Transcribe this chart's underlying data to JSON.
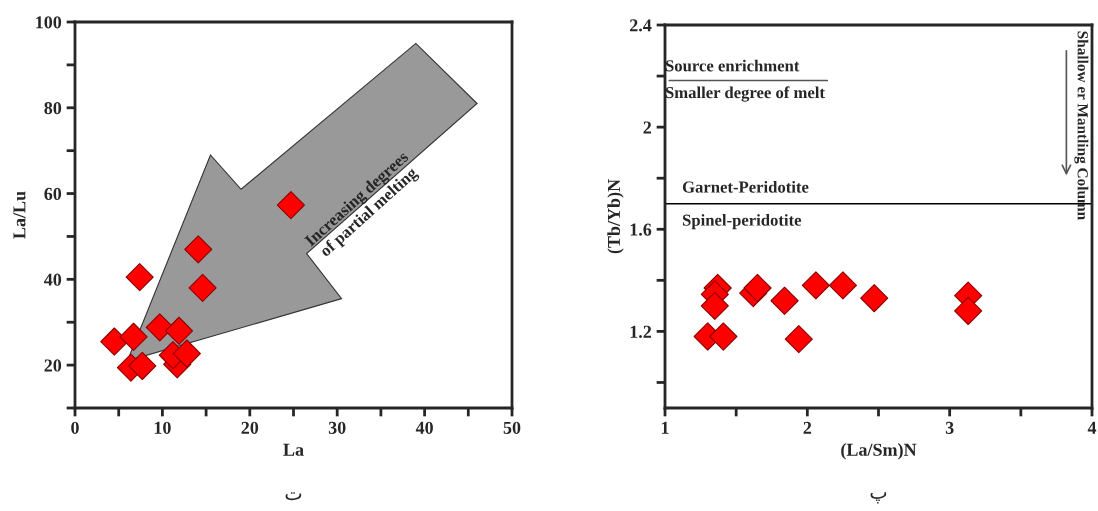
{
  "chart_data": [
    {
      "type": "scatter",
      "xlabel": "La",
      "ylabel": "La/Lu",
      "marker": "diamond",
      "grid": false,
      "legend": false,
      "xlim": [
        0,
        50
      ],
      "ylim": [
        10,
        100
      ],
      "xticks": [
        0,
        {
          "value": 5,
          "label": null
        },
        10,
        {
          "value": 15,
          "label": null
        },
        20,
        {
          "value": 25,
          "label": null
        },
        30,
        {
          "value": 35,
          "label": null
        },
        40,
        {
          "value": 45,
          "label": null
        },
        50
      ],
      "yticks": [
        {
          "value": 10,
          "label": null
        },
        20,
        {
          "value": 30,
          "label": null
        },
        40,
        {
          "value": 50,
          "label": null
        },
        60,
        {
          "value": 70,
          "label": null
        },
        80,
        {
          "value": 90,
          "label": null
        },
        100
      ],
      "series": [
        {
          "color": "#ff0000",
          "x": [
            4.5,
            6.7,
            6.4,
            7.7,
            7.4,
            9.7,
            11.9,
            11.7,
            11.2,
            12.8,
            14.1,
            14.6,
            24.7
          ],
          "values": [
            25.5,
            26.6,
            19.4,
            19.8,
            40.5,
            28.8,
            28,
            20.2,
            22.3,
            22.7,
            47,
            38,
            57.3
          ]
        }
      ],
      "annotations": [
        "Increasing degrees\nof partial melting",
        "ت"
      ]
    },
    {
      "type": "scatter",
      "xlabel": "(La/Sm)N",
      "ylabel": "(Tb/Yb)N",
      "marker": "diamond",
      "grid": false,
      "legend": false,
      "xlim": [
        1,
        4
      ],
      "ylim": [
        0.9,
        2.4
      ],
      "xticks": [
        1,
        {
          "value": 1.5,
          "label": null
        },
        2,
        {
          "value": 2.5,
          "label": null
        },
        3,
        {
          "value": 3.5,
          "label": null
        },
        4
      ],
      "yticks": [
        {
          "value": 1.0,
          "label": null
        },
        1.2,
        {
          "value": 1.4,
          "label": null
        },
        1.6,
        {
          "value": 1.8,
          "label": null
        },
        2,
        {
          "value": 2.2,
          "label": null
        },
        2.4
      ],
      "series": [
        {
          "color": "#ff0000",
          "x": [
            1.37,
            1.35,
            1.35,
            1.3,
            1.41,
            1.62,
            1.65,
            1.84,
            1.94,
            2.06,
            2.25,
            2.47,
            3.13,
            3.13
          ],
          "values": [
            1.37,
            1.345,
            1.3,
            1.18,
            1.18,
            1.35,
            1.37,
            1.32,
            1.17,
            1.38,
            1.38,
            1.33,
            1.34,
            1.28
          ]
        }
      ],
      "ref_lines": [
        {
          "axis": "y",
          "value": 1.7,
          "label": "Garnet-Peridotite",
          "color": "#000000"
        }
      ],
      "annotations": [
        "Source enrichment",
        "Smaller degree of melt",
        "Spinel-peridotite",
        "Shallow er Mantling Column",
        "پ"
      ]
    }
  ]
}
